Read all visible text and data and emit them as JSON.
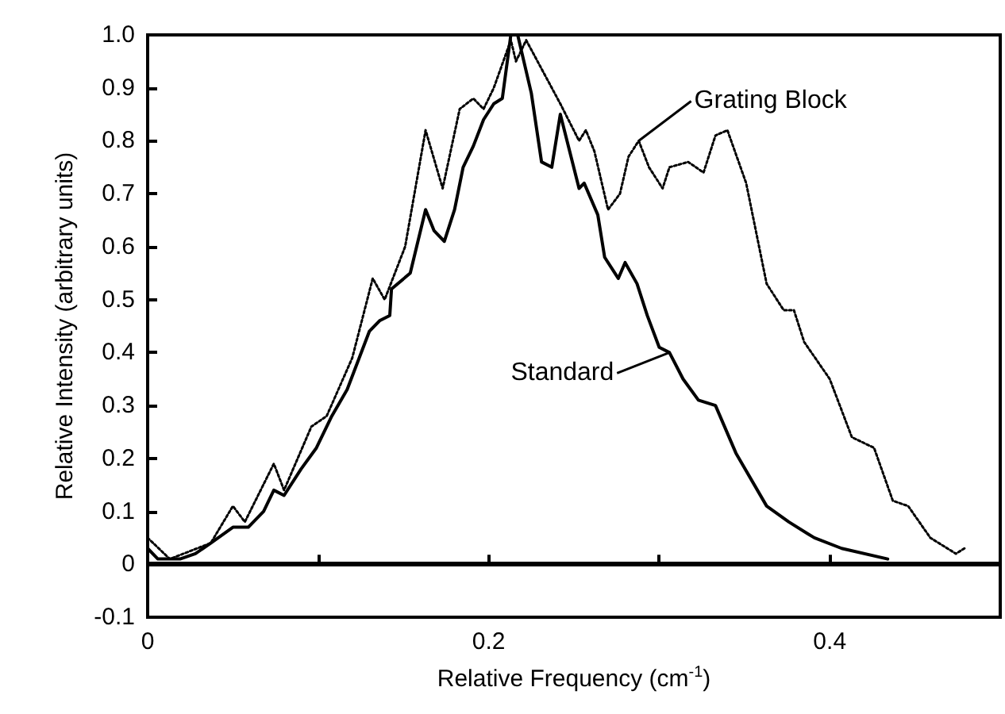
{
  "chart_data": {
    "type": "line",
    "xlabel": "Relative Frequency (cm$^{-1}$)",
    "ylabel": "Relative Intensity (arbitrary units)",
    "xlim": [
      0,
      0.5
    ],
    "xticks": [
      0,
      {
        "value": 0.1,
        "label": null
      },
      0.2,
      {
        "value": 0.3,
        "label": null
      },
      0.4
    ],
    "ylim": [
      -0.1,
      1.0
    ],
    "yticks": [
      -0.1,
      0,
      0.1,
      0.2,
      0.3,
      0.4,
      0.5,
      0.6,
      0.7,
      0.8,
      0.9,
      {
        "value": 1.0,
        "label": "1.0"
      }
    ],
    "grid": false,
    "marker": "none",
    "ref_lines": [
      {
        "axis": "y",
        "value": 0,
        "label": null,
        "color": "#000000",
        "line_style": "solid"
      }
    ],
    "annotations": [
      {
        "text": "Grating Block",
        "x": 0.288,
        "y": 0.8
      },
      {
        "text": "Standard",
        "x": 0.306,
        "y": 0.4
      }
    ],
    "series": [
      {
        "color": "#000000",
        "line_style": "solid",
        "x": [
          0,
          0.006,
          0.019,
          0.028,
          0.037,
          0.05,
          0.059,
          0.068,
          0.074,
          0.08,
          0.09,
          0.099,
          0.108,
          0.117,
          0.13,
          0.136,
          0.142,
          0.143,
          0.154,
          0.163,
          0.168,
          0.174,
          0.18,
          0.185,
          0.191,
          0.197,
          0.203,
          0.208,
          0.213,
          0.217,
          0.225,
          0.231,
          0.237,
          0.242,
          0.253,
          0.256,
          0.264,
          0.268,
          0.276,
          0.28,
          0.287,
          0.293,
          0.3,
          0.306,
          0.314,
          0.323,
          0.333,
          0.345,
          0.363,
          0.376,
          0.391,
          0.407,
          0.434
        ],
        "values": [
          0.03,
          0.01,
          0.01,
          0.02,
          0.04,
          0.07,
          0.07,
          0.1,
          0.14,
          0.13,
          0.18,
          0.22,
          0.28,
          0.33,
          0.44,
          0.46,
          0.47,
          0.52,
          0.55,
          0.67,
          0.63,
          0.61,
          0.67,
          0.75,
          0.79,
          0.84,
          0.87,
          0.88,
          1.0,
          1.0,
          0.89,
          0.76,
          0.75,
          0.85,
          0.71,
          0.72,
          0.66,
          0.58,
          0.54,
          0.57,
          0.53,
          0.47,
          0.41,
          0.4,
          0.35,
          0.31,
          0.3,
          0.21,
          0.11,
          0.08,
          0.05,
          0.03,
          0.01
        ]
      },
      {
        "color": "#000000",
        "line_style": "dotted",
        "x": [
          0,
          0.013,
          0.037,
          0.05,
          0.057,
          0.074,
          0.08,
          0.096,
          0.105,
          0.12,
          0.132,
          0.139,
          0.151,
          0.163,
          0.173,
          0.183,
          0.191,
          0.197,
          0.203,
          0.213,
          0.216,
          0.222,
          0.242,
          0.253,
          0.257,
          0.262,
          0.27,
          0.277,
          0.282,
          0.288,
          0.294,
          0.302,
          0.306,
          0.317,
          0.326,
          0.333,
          0.34,
          0.351,
          0.363,
          0.373,
          0.379,
          0.385,
          0.4,
          0.413,
          0.426,
          0.437,
          0.446,
          0.459,
          0.474,
          0.479
        ],
        "values": [
          0.05,
          0.01,
          0.04,
          0.11,
          0.08,
          0.19,
          0.14,
          0.26,
          0.28,
          0.39,
          0.54,
          0.5,
          0.6,
          0.82,
          0.71,
          0.86,
          0.88,
          0.86,
          0.9,
          0.99,
          0.95,
          0.99,
          0.87,
          0.8,
          0.82,
          0.78,
          0.67,
          0.7,
          0.77,
          0.8,
          0.75,
          0.71,
          0.75,
          0.76,
          0.74,
          0.81,
          0.82,
          0.72,
          0.53,
          0.48,
          0.48,
          0.42,
          0.35,
          0.24,
          0.22,
          0.12,
          0.11,
          0.05,
          0.02,
          0.03
        ]
      }
    ]
  }
}
